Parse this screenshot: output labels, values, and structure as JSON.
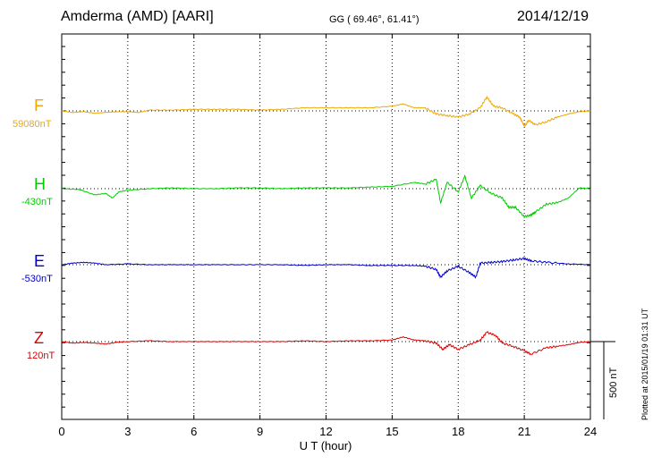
{
  "header": {
    "station": "Amderma (AMD)  [AARI]",
    "coords": "GG ( 69.46°,  61.41°)",
    "date": "2014/12/19"
  },
  "footer": {
    "plotted": "Plotted at 2015/01/19 01:31  UT"
  },
  "chart_data": {
    "type": "line",
    "xlabel": "U T (hour)",
    "xlim": [
      0,
      24
    ],
    "x_ticks": [
      "0",
      "3",
      "6",
      "9",
      "12",
      "15",
      "18",
      "21",
      "24"
    ],
    "scale_bar": "500 nT",
    "series": [
      {
        "name": "F",
        "baseline_label": "59080nT",
        "color": "#f0a800",
        "baseline": 0,
        "points": [
          [
            0,
            0
          ],
          [
            0.5,
            -10
          ],
          [
            1,
            -5
          ],
          [
            1.5,
            -15
          ],
          [
            2,
            -10
          ],
          [
            2.5,
            -5
          ],
          [
            3,
            -5
          ],
          [
            3.5,
            -10
          ],
          [
            4,
            5
          ],
          [
            5,
            5
          ],
          [
            6,
            10
          ],
          [
            7,
            10
          ],
          [
            8,
            10
          ],
          [
            9,
            5
          ],
          [
            10,
            10
          ],
          [
            11,
            20
          ],
          [
            12,
            20
          ],
          [
            13,
            20
          ],
          [
            14,
            20
          ],
          [
            15,
            30
          ],
          [
            15.5,
            45
          ],
          [
            16,
            20
          ],
          [
            16.5,
            20
          ],
          [
            17,
            -20
          ],
          [
            17.5,
            -30
          ],
          [
            18,
            -40
          ],
          [
            18.5,
            -20
          ],
          [
            19,
            20
          ],
          [
            19.3,
            90
          ],
          [
            19.6,
            30
          ],
          [
            20,
            20
          ],
          [
            20.5,
            -20
          ],
          [
            20.8,
            -40
          ],
          [
            21,
            -100
          ],
          [
            21.2,
            -60
          ],
          [
            21.5,
            -90
          ],
          [
            22,
            -70
          ],
          [
            22.5,
            -40
          ],
          [
            23,
            -20
          ],
          [
            23.5,
            -5
          ],
          [
            24,
            0
          ]
        ]
      },
      {
        "name": "H",
        "baseline_label": "-430nT",
        "color": "#00cc00",
        "baseline": 0,
        "points": [
          [
            0,
            0
          ],
          [
            0.8,
            -5
          ],
          [
            1.5,
            -40
          ],
          [
            2,
            -30
          ],
          [
            2.3,
            -60
          ],
          [
            2.6,
            -20
          ],
          [
            3,
            -10
          ],
          [
            4,
            0
          ],
          [
            5,
            5
          ],
          [
            6,
            0
          ],
          [
            7,
            0
          ],
          [
            8,
            5
          ],
          [
            9,
            5
          ],
          [
            10,
            0
          ],
          [
            11,
            5
          ],
          [
            12,
            5
          ],
          [
            13,
            5
          ],
          [
            14,
            10
          ],
          [
            15,
            15
          ],
          [
            16,
            40
          ],
          [
            16.5,
            30
          ],
          [
            17,
            60
          ],
          [
            17.2,
            -90
          ],
          [
            17.5,
            40
          ],
          [
            18,
            -20
          ],
          [
            18.3,
            80
          ],
          [
            18.6,
            -60
          ],
          [
            19,
            20
          ],
          [
            19.5,
            -30
          ],
          [
            20,
            -60
          ],
          [
            20.3,
            -120
          ],
          [
            20.6,
            -120
          ],
          [
            21,
            -180
          ],
          [
            21.3,
            -170
          ],
          [
            21.5,
            -150
          ],
          [
            22,
            -100
          ],
          [
            22.5,
            -90
          ],
          [
            23,
            -60
          ],
          [
            23.5,
            5
          ],
          [
            24,
            0
          ]
        ]
      },
      {
        "name": "E",
        "baseline_label": "-530nT",
        "color": "#0000cc",
        "baseline": 0,
        "points": [
          [
            0,
            0
          ],
          [
            0.5,
            10
          ],
          [
            1,
            15
          ],
          [
            1.5,
            10
          ],
          [
            2,
            0
          ],
          [
            3,
            5
          ],
          [
            4,
            0
          ],
          [
            5,
            0
          ],
          [
            6,
            0
          ],
          [
            7,
            0
          ],
          [
            8,
            0
          ],
          [
            9,
            0
          ],
          [
            10,
            0
          ],
          [
            11,
            -5
          ],
          [
            12,
            0
          ],
          [
            13,
            0
          ],
          [
            14,
            -5
          ],
          [
            15,
            -5
          ],
          [
            16,
            -5
          ],
          [
            16.5,
            -10
          ],
          [
            17,
            -30
          ],
          [
            17.2,
            -80
          ],
          [
            17.5,
            -40
          ],
          [
            18,
            -10
          ],
          [
            18.5,
            -50
          ],
          [
            18.8,
            -80
          ],
          [
            19,
            10
          ],
          [
            19.5,
            15
          ],
          [
            20,
            20
          ],
          [
            20.5,
            30
          ],
          [
            21,
            40
          ],
          [
            21.3,
            25
          ],
          [
            22,
            15
          ],
          [
            23,
            5
          ],
          [
            24,
            0
          ]
        ]
      },
      {
        "name": "Z",
        "baseline_label": "120nT",
        "color": "#e00000",
        "baseline": 0,
        "points": [
          [
            0,
            0
          ],
          [
            0.5,
            -10
          ],
          [
            1,
            -5
          ],
          [
            1.5,
            -10
          ],
          [
            2,
            -15
          ],
          [
            2.5,
            -5
          ],
          [
            3,
            0
          ],
          [
            4,
            5
          ],
          [
            5,
            0
          ],
          [
            6,
            0
          ],
          [
            7,
            0
          ],
          [
            8,
            0
          ],
          [
            9,
            0
          ],
          [
            10,
            0
          ],
          [
            11,
            5
          ],
          [
            12,
            0
          ],
          [
            13,
            5
          ],
          [
            14,
            5
          ],
          [
            15,
            10
          ],
          [
            15.5,
            30
          ],
          [
            16,
            10
          ],
          [
            16.5,
            5
          ],
          [
            17,
            -10
          ],
          [
            17.3,
            -50
          ],
          [
            17.6,
            -20
          ],
          [
            18,
            -50
          ],
          [
            18.5,
            -20
          ],
          [
            19,
            10
          ],
          [
            19.3,
            60
          ],
          [
            19.7,
            40
          ],
          [
            20,
            -10
          ],
          [
            20.5,
            -30
          ],
          [
            21,
            -60
          ],
          [
            21.3,
            -80
          ],
          [
            22,
            -40
          ],
          [
            22.5,
            -30
          ],
          [
            23,
            -20
          ],
          [
            23.5,
            -5
          ],
          [
            24,
            0
          ]
        ]
      }
    ]
  }
}
